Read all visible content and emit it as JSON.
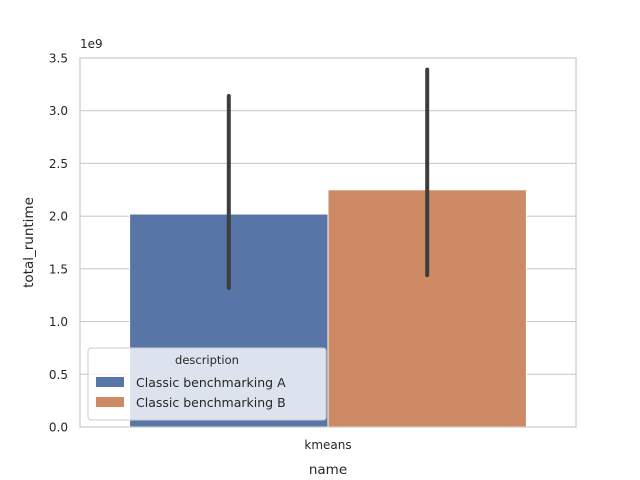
{
  "chart_data": {
    "type": "bar",
    "categories": [
      "kmeans"
    ],
    "series": [
      {
        "name": "Classic benchmarking A",
        "values": [
          2020000000
        ],
        "error_low": [
          1320000000
        ],
        "error_high": [
          3140000000
        ],
        "color": "#5875a8"
      },
      {
        "name": "Classic benchmarking B",
        "values": [
          2250000000
        ],
        "error_low": [
          1440000000
        ],
        "error_high": [
          3390000000
        ],
        "color": "#cd8a64"
      }
    ],
    "xlabel": "name",
    "ylabel": "total_runtime",
    "y_offset_label": "1e9",
    "ylim": [
      0,
      3500000000
    ],
    "y_ticks": [
      0,
      500000000,
      1000000000,
      1500000000,
      2000000000,
      2500000000,
      3000000000,
      3500000000
    ],
    "y_tick_labels": [
      "0.0",
      "0.5",
      "1.0",
      "1.5",
      "2.0",
      "2.5",
      "3.0",
      "3.5"
    ],
    "grid": true,
    "legend": {
      "title": "description",
      "placement": "lower-left"
    },
    "style": {
      "grid_color": "#cccccc",
      "error_color": "#3d3d3d"
    }
  }
}
